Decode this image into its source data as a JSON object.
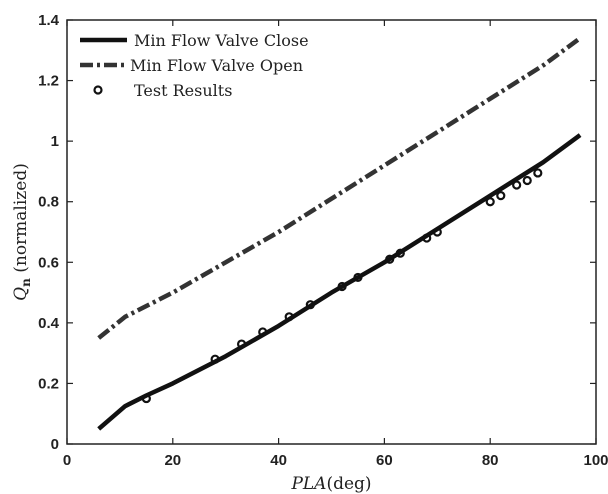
{
  "chart_data": {
    "type": "line",
    "xlabel": {
      "main": "PLA",
      "unit": "(deg)"
    },
    "ylabel": {
      "symbol": "Q",
      "subscript": "n",
      "rest": " (normalized)"
    },
    "xlim": [
      0,
      100
    ],
    "ylim": [
      0,
      1.4
    ],
    "xticks": [
      0,
      20,
      40,
      60,
      80,
      100
    ],
    "yticks": [
      0,
      0.2,
      0.4,
      0.6,
      0.8,
      1,
      1.2,
      1.4
    ],
    "xtick_labels": [
      "0",
      "20",
      "40",
      "60",
      "80",
      "100"
    ],
    "ytick_labels": [
      "0",
      "0.2",
      "0.4",
      "0.6",
      "0.8",
      "1",
      "1.2",
      "1.4"
    ],
    "grid": false,
    "legend_position": "top-left",
    "series": [
      {
        "name": "Min Flow Valve Close",
        "style": "solid",
        "color": "#111111",
        "x": [
          6,
          11,
          15,
          20,
          30,
          40,
          50,
          60,
          70,
          80,
          90,
          97
        ],
        "y": [
          0.05,
          0.125,
          0.16,
          0.2,
          0.29,
          0.39,
          0.5,
          0.6,
          0.71,
          0.82,
          0.93,
          1.02
        ]
      },
      {
        "name": "Min Flow Valve Open",
        "style": "dashdot",
        "color": "#333333",
        "x": [
          6,
          11,
          20,
          30,
          40,
          50,
          60,
          70,
          80,
          90,
          97
        ],
        "y": [
          0.35,
          0.42,
          0.5,
          0.6,
          0.7,
          0.81,
          0.92,
          1.03,
          1.14,
          1.25,
          1.34
        ]
      },
      {
        "name": "Test Results",
        "style": "markers",
        "color": "#111111",
        "x": [
          15,
          28,
          33,
          37,
          42,
          46,
          52,
          55,
          61,
          63,
          68,
          70,
          80,
          82,
          85,
          87,
          89
        ],
        "y": [
          0.15,
          0.28,
          0.33,
          0.37,
          0.42,
          0.46,
          0.52,
          0.55,
          0.61,
          0.63,
          0.68,
          0.7,
          0.8,
          0.82,
          0.855,
          0.87,
          0.895
        ]
      }
    ]
  }
}
